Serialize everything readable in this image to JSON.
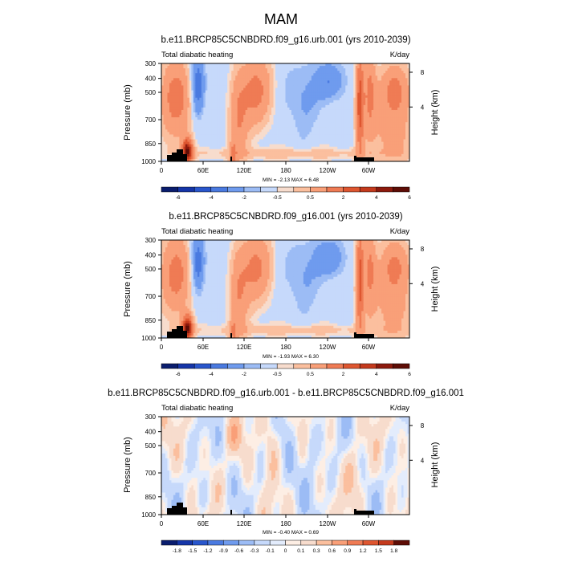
{
  "page_title": "MAM",
  "chart_data": [
    {
      "type": "heatmap",
      "title": "b.e11.BRCP85C5CNBDRD.f09_g16.urb.001 (yrs 2010-2039)",
      "left_label": "Total diabatic heating",
      "right_label": "K/day",
      "ylabel": "Pressure (mb)",
      "y2label": "Height (km)",
      "yticks": [
        "300",
        "400",
        "500",
        "700",
        "850",
        "1000"
      ],
      "y2ticks": [
        "8",
        "4"
      ],
      "xticks": [
        "0",
        "60E",
        "120E",
        "180",
        "120W",
        "60W"
      ],
      "stats": "MIN =  -2.13   MAX =   6.48",
      "colorbar_labels": [
        "-6",
        "-4",
        "-2",
        "-0.5",
        "0.5",
        "2",
        "4",
        "6"
      ],
      "variant": "a"
    },
    {
      "type": "heatmap",
      "title": "b.e11.BRCP85C5CNBDRD.f09_g16.001 (yrs 2010-2039)",
      "left_label": "Total diabatic heating",
      "right_label": "K/day",
      "ylabel": "Pressure (mb)",
      "y2label": "Height (km)",
      "yticks": [
        "300",
        "400",
        "500",
        "700",
        "850",
        "1000"
      ],
      "y2ticks": [
        "8",
        "4"
      ],
      "xticks": [
        "0",
        "60E",
        "120E",
        "180",
        "120W",
        "60W"
      ],
      "stats": "MIN =  -1.93   MAX =   6.30",
      "colorbar_labels": [
        "-6",
        "-4",
        "-2",
        "-0.5",
        "0.5",
        "2",
        "4",
        "6"
      ],
      "variant": "b"
    },
    {
      "type": "heatmap",
      "title": "b.e11.BRCP85C5CNBDRD.f09_g16.urb.001 - b.e11.BRCP85C5CNBDRD.f09_g16.001",
      "left_label": "Total diabatic heating",
      "right_label": "K/day",
      "ylabel": "Pressure (mb)",
      "y2label": "Height (km)",
      "yticks": [
        "300",
        "400",
        "500",
        "700",
        "850",
        "1000"
      ],
      "y2ticks": [
        "8",
        "4"
      ],
      "xticks": [
        "0",
        "60E",
        "120E",
        "180",
        "120W",
        "60W"
      ],
      "stats": "MIN =  -0.40   MAX =   0.69",
      "colorbar_labels": [
        "-1.8",
        "-1.5",
        "-1.2",
        "-0.9",
        "-0.6",
        "-0.3",
        "-0.1",
        "0",
        "0.1",
        "0.3",
        "0.6",
        "0.9",
        "1.2",
        "1.5",
        "1.8"
      ],
      "variant": "diff"
    }
  ],
  "colors": {
    "full_palette": [
      "#0a1d6e",
      "#1535a8",
      "#2956cc",
      "#4a7ae0",
      "#6f9bee",
      "#9cbcf5",
      "#c6d9fb",
      "#f7dccd",
      "#fbbf9e",
      "#f99f78",
      "#ef7b54",
      "#de5630",
      "#c43a1d",
      "#8d1a0d",
      "#5e0d06"
    ],
    "diff_palette": [
      "#0a1d6e",
      "#1535a8",
      "#2956cc",
      "#4a7ae0",
      "#6f9bee",
      "#9cbcf5",
      "#c6d9fb",
      "#e3ecfc",
      "#fdeee4",
      "#f7dccd",
      "#fbbf9e",
      "#f99f78",
      "#ef7b54",
      "#de5630",
      "#c43a1d",
      "#5e0d06"
    ],
    "topography": "#000000"
  }
}
